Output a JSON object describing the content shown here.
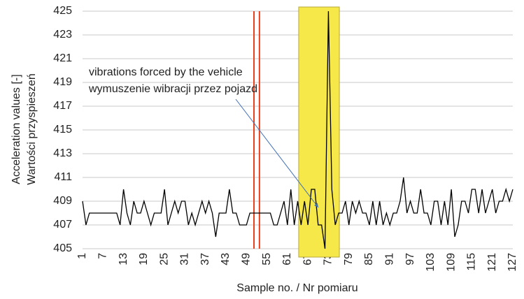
{
  "chart_data": {
    "type": "line",
    "x_label": "Sample no. / Nr pomiaru",
    "y_label": [
      "Acceleration values [-]",
      "Wartości przyspieszeń"
    ],
    "annotation": [
      "vibrations forced by the vehicle",
      "wymuszenie wibracji przez pojazd"
    ],
    "x": [
      1,
      2,
      3,
      4,
      5,
      6,
      7,
      8,
      9,
      10,
      11,
      12,
      13,
      14,
      15,
      16,
      17,
      18,
      19,
      20,
      21,
      22,
      23,
      24,
      25,
      26,
      27,
      28,
      29,
      30,
      31,
      32,
      33,
      34,
      35,
      36,
      37,
      38,
      39,
      40,
      41,
      42,
      43,
      44,
      45,
      46,
      47,
      48,
      49,
      50,
      51,
      52,
      53,
      54,
      55,
      56,
      57,
      58,
      59,
      60,
      61,
      62,
      63,
      64,
      65,
      66,
      67,
      68,
      69,
      70,
      71,
      72,
      73,
      74,
      75,
      76,
      77,
      78,
      79,
      80,
      81,
      82,
      83,
      84,
      85,
      86,
      87,
      88,
      89,
      90,
      91,
      92,
      93,
      94,
      95,
      96,
      97,
      98,
      99,
      100,
      101,
      102,
      103,
      104,
      105,
      106,
      107,
      108,
      109,
      110,
      111,
      112,
      113,
      114,
      115,
      116,
      117,
      118,
      119,
      120,
      121,
      122,
      123,
      124,
      125,
      126,
      127
    ],
    "series": [
      {
        "color": "#000000",
        "values": [
          409,
          407,
          408,
          408,
          408,
          408,
          408,
          408,
          408,
          408,
          408,
          407,
          410,
          408,
          407,
          409,
          408,
          408,
          409,
          408,
          407,
          408,
          408,
          408,
          410,
          407,
          408,
          409,
          408,
          409,
          409,
          407,
          408,
          407,
          408,
          409,
          408,
          409,
          408,
          406,
          408,
          408,
          408,
          410,
          408,
          408,
          407,
          407,
          407,
          408,
          408,
          408,
          408,
          408,
          408,
          408,
          407,
          407,
          408,
          409,
          407,
          410,
          407,
          409,
          407,
          409,
          407,
          410,
          410,
          407,
          407,
          405,
          425,
          410,
          407,
          408,
          408,
          409,
          407,
          409,
          408,
          409,
          408,
          408,
          407,
          409,
          407,
          409,
          407,
          408,
          407,
          408,
          408,
          409,
          411,
          408,
          409,
          408,
          408,
          410,
          408,
          408,
          407,
          409,
          409,
          407,
          409,
          407,
          410,
          406,
          407,
          409,
          409,
          408,
          410,
          410,
          408,
          410,
          408,
          409,
          410,
          408,
          409,
          409,
          410,
          409,
          410
        ]
      }
    ],
    "reference_lines": {
      "color": "#e8401c",
      "x": [
        51.2,
        52.8
      ]
    },
    "highlight_band": {
      "color": "#f7e84a",
      "x": [
        64.3,
        76.2
      ]
    },
    "xlim": [
      1,
      127
    ],
    "xticks": [
      1,
      7,
      13,
      19,
      25,
      31,
      37,
      43,
      49,
      55,
      61,
      67,
      73,
      79,
      85,
      91,
      97,
      103,
      109,
      115,
      121,
      127
    ],
    "ylim": [
      405,
      425
    ],
    "yticks": [
      405,
      407,
      409,
      411,
      413,
      415,
      417,
      419,
      421,
      423,
      425
    ],
    "grid": true
  }
}
